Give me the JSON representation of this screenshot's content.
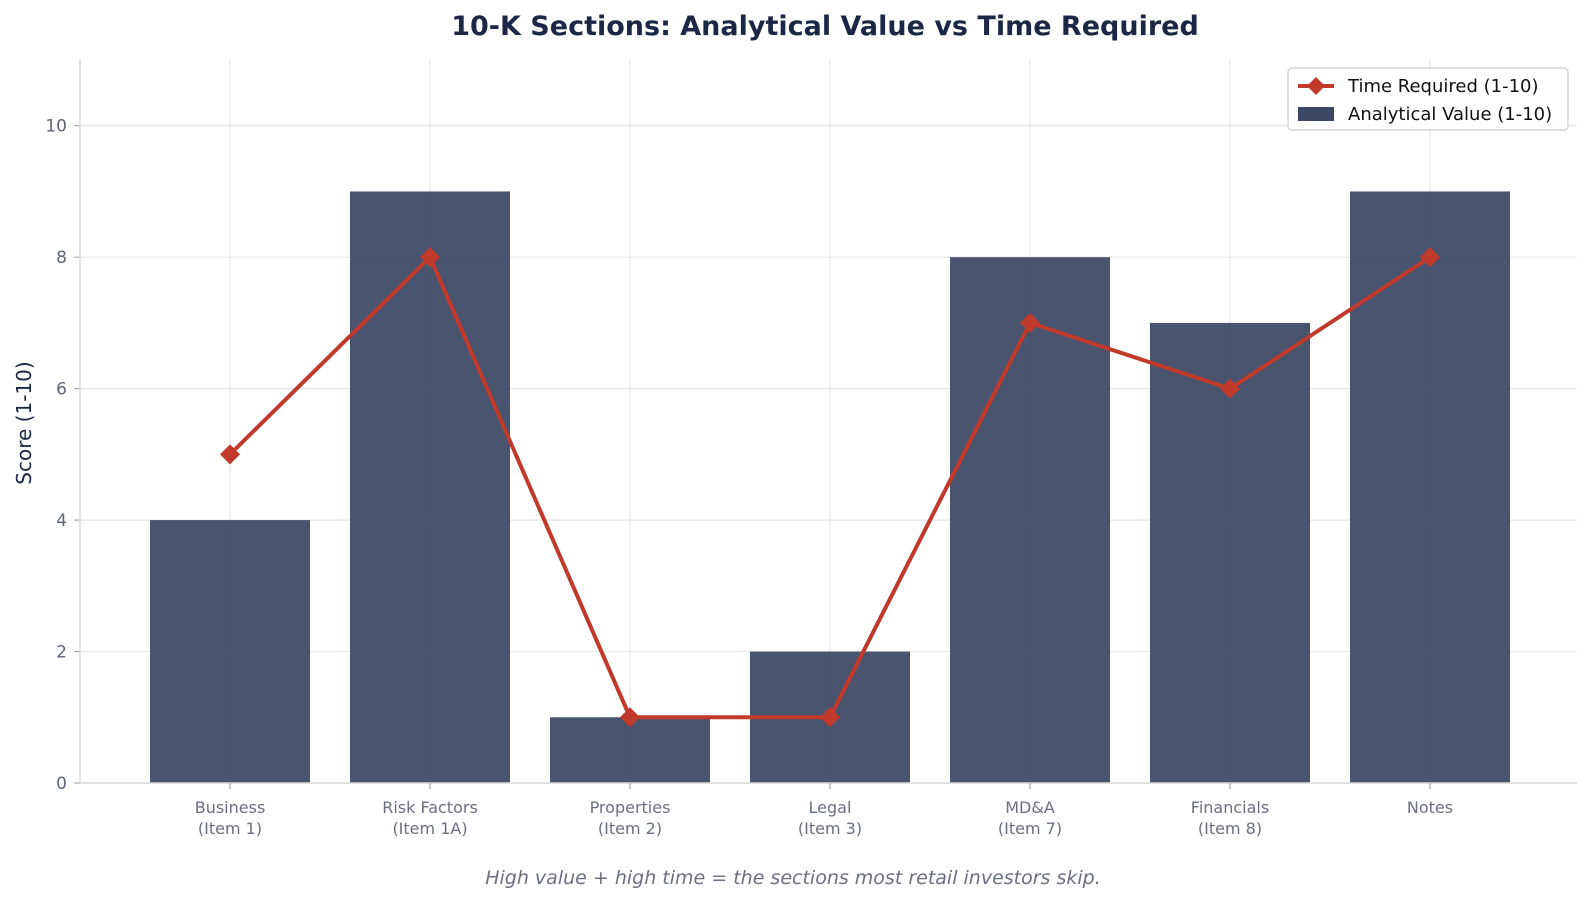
{
  "chart_data": {
    "type": "bar",
    "title": "10-K Sections: Analytical Value vs Time Required",
    "ylabel": "Score (1-10)",
    "xlabel": "",
    "caption": "High value + high time = the sections most retail investors skip.",
    "ylim": [
      0,
      11
    ],
    "yticks": [
      0,
      2,
      4,
      6,
      8,
      10
    ],
    "grid": true,
    "legend_position": "top-right",
    "categories": [
      [
        "Business",
        "(Item 1)"
      ],
      [
        "Risk Factors",
        "(Item 1A)"
      ],
      [
        "Properties",
        "(Item 2)"
      ],
      [
        "Legal",
        "(Item 3)"
      ],
      [
        "MD&A",
        "(Item 7)"
      ],
      [
        "Financials",
        "(Item 8)"
      ],
      [
        "Notes"
      ]
    ],
    "series": [
      {
        "name": "Analytical Value (1-10)",
        "type": "bar",
        "color": "#3b4763",
        "values": [
          4,
          9,
          1,
          2,
          8,
          7,
          9
        ]
      },
      {
        "name": "Time Required (1-10)",
        "type": "line",
        "marker": "diamond",
        "color": "#c0392b",
        "values": [
          5,
          8,
          1,
          1,
          7,
          6,
          8
        ]
      }
    ],
    "colors": {
      "grid": "#e6e6e6",
      "axis": "#d9d9d9"
    }
  }
}
